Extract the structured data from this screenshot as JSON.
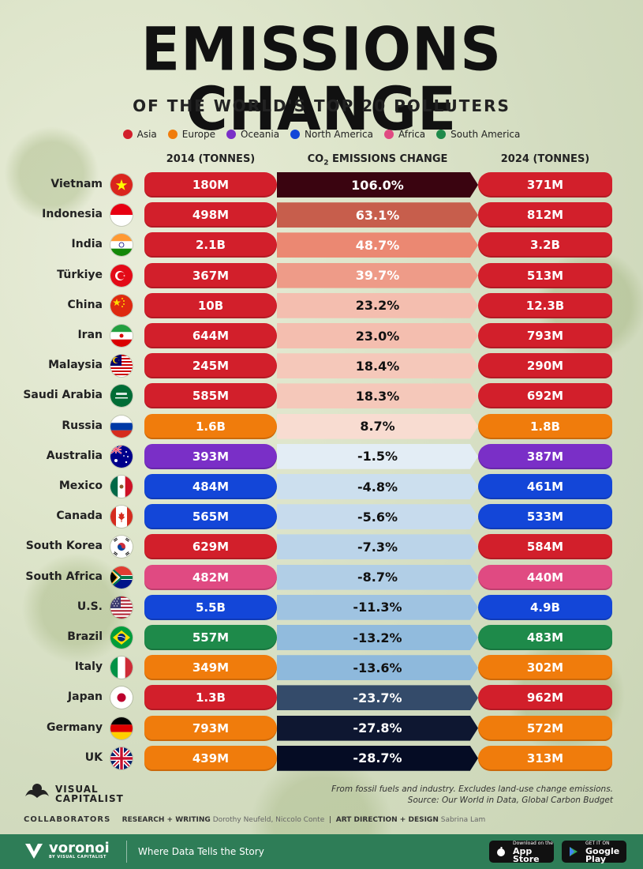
{
  "title": "EMISSIONS CHANGE",
  "subtitle": "OF THE WORLD'S TOP 20 POLLUTERS",
  "legend": [
    {
      "label": "Asia",
      "color": "#d21f2b"
    },
    {
      "label": "Europe",
      "color": "#f07c0c"
    },
    {
      "label": "Oceania",
      "color": "#7a2fc7"
    },
    {
      "label": "North America",
      "color": "#1346d8"
    },
    {
      "label": "Africa",
      "color": "#e04a82"
    },
    {
      "label": "South America",
      "color": "#1e8a4a"
    }
  ],
  "columns": {
    "col2014": "2014 (TONNES)",
    "change_prefix": "CO",
    "change_sub": "2",
    "change_suffix": " EMISSIONS CHANGE",
    "col2024": "2024 (TONNES)"
  },
  "chart_data": {
    "type": "table",
    "rows": [
      {
        "country": "Vietnam",
        "region": "Asia",
        "e2014": "180M",
        "change": "106.0%",
        "e2024": "371M",
        "pct": 106.0
      },
      {
        "country": "Indonesia",
        "region": "Asia",
        "e2014": "498M",
        "change": "63.1%",
        "e2024": "812M",
        "pct": 63.1
      },
      {
        "country": "India",
        "region": "Asia",
        "e2014": "2.1B",
        "change": "48.7%",
        "e2024": "3.2B",
        "pct": 48.7
      },
      {
        "country": "Türkiye",
        "region": "Asia",
        "e2014": "367M",
        "change": "39.7%",
        "e2024": "513M",
        "pct": 39.7
      },
      {
        "country": "China",
        "region": "Asia",
        "e2014": "10B",
        "change": "23.2%",
        "e2024": "12.3B",
        "pct": 23.2
      },
      {
        "country": "Iran",
        "region": "Asia",
        "e2014": "644M",
        "change": "23.0%",
        "e2024": "793M",
        "pct": 23.0
      },
      {
        "country": "Malaysia",
        "region": "Asia",
        "e2014": "245M",
        "change": "18.4%",
        "e2024": "290M",
        "pct": 18.4
      },
      {
        "country": "Saudi Arabia",
        "region": "Asia",
        "e2014": "585M",
        "change": "18.3%",
        "e2024": "692M",
        "pct": 18.3
      },
      {
        "country": "Russia",
        "region": "Europe",
        "e2014": "1.6B",
        "change": "8.7%",
        "e2024": "1.8B",
        "pct": 8.7
      },
      {
        "country": "Australia",
        "region": "Oceania",
        "e2014": "393M",
        "change": "-1.5%",
        "e2024": "387M",
        "pct": -1.5
      },
      {
        "country": "Mexico",
        "region": "North America",
        "e2014": "484M",
        "change": "-4.8%",
        "e2024": "461M",
        "pct": -4.8
      },
      {
        "country": "Canada",
        "region": "North America",
        "e2014": "565M",
        "change": "-5.6%",
        "e2024": "533M",
        "pct": -5.6
      },
      {
        "country": "South Korea",
        "region": "Asia",
        "e2014": "629M",
        "change": "-7.3%",
        "e2024": "584M",
        "pct": -7.3
      },
      {
        "country": "South Africa",
        "region": "Africa",
        "e2014": "482M",
        "change": "-8.7%",
        "e2024": "440M",
        "pct": -8.7
      },
      {
        "country": "U.S.",
        "region": "North America",
        "e2014": "5.5B",
        "change": "-11.3%",
        "e2024": "4.9B",
        "pct": -11.3
      },
      {
        "country": "Brazil",
        "region": "South America",
        "e2014": "557M",
        "change": "-13.2%",
        "e2024": "483M",
        "pct": -13.2
      },
      {
        "country": "Italy",
        "region": "Europe",
        "e2014": "349M",
        "change": "-13.6%",
        "e2024": "302M",
        "pct": -13.6
      },
      {
        "country": "Japan",
        "region": "Asia",
        "e2014": "1.3B",
        "change": "-23.7%",
        "e2024": "962M",
        "pct": -23.7
      },
      {
        "country": "Germany",
        "region": "Europe",
        "e2014": "793M",
        "change": "-27.8%",
        "e2024": "572M",
        "pct": -27.8
      },
      {
        "country": "UK",
        "region": "Europe",
        "e2014": "439M",
        "change": "-28.7%",
        "e2024": "313M",
        "pct": -28.7
      }
    ]
  },
  "footer": {
    "note1": "From fossil fuels and industry. Excludes land-use change emissions.",
    "note2": "Source: Our World in Data, Global Carbon Budget",
    "logo_line1": "VISUAL",
    "logo_line2": "CAPITALIST",
    "collab_label": "COLLABORATORS",
    "research_label": "RESEARCH + WRITING",
    "research_names": "Dorothy Neufeld, Niccolo Conte",
    "design_label": "ART DIRECTION + DESIGN",
    "design_names": "Sabrina Lam",
    "brand": "voronoi",
    "brand_sub": "BY VISUAL CAPITALIST",
    "tagline": "Where Data Tells the Story",
    "app_store_small": "Download on the",
    "app_store": "App Store",
    "google_small": "GET IT ON",
    "google": "Google Play"
  }
}
